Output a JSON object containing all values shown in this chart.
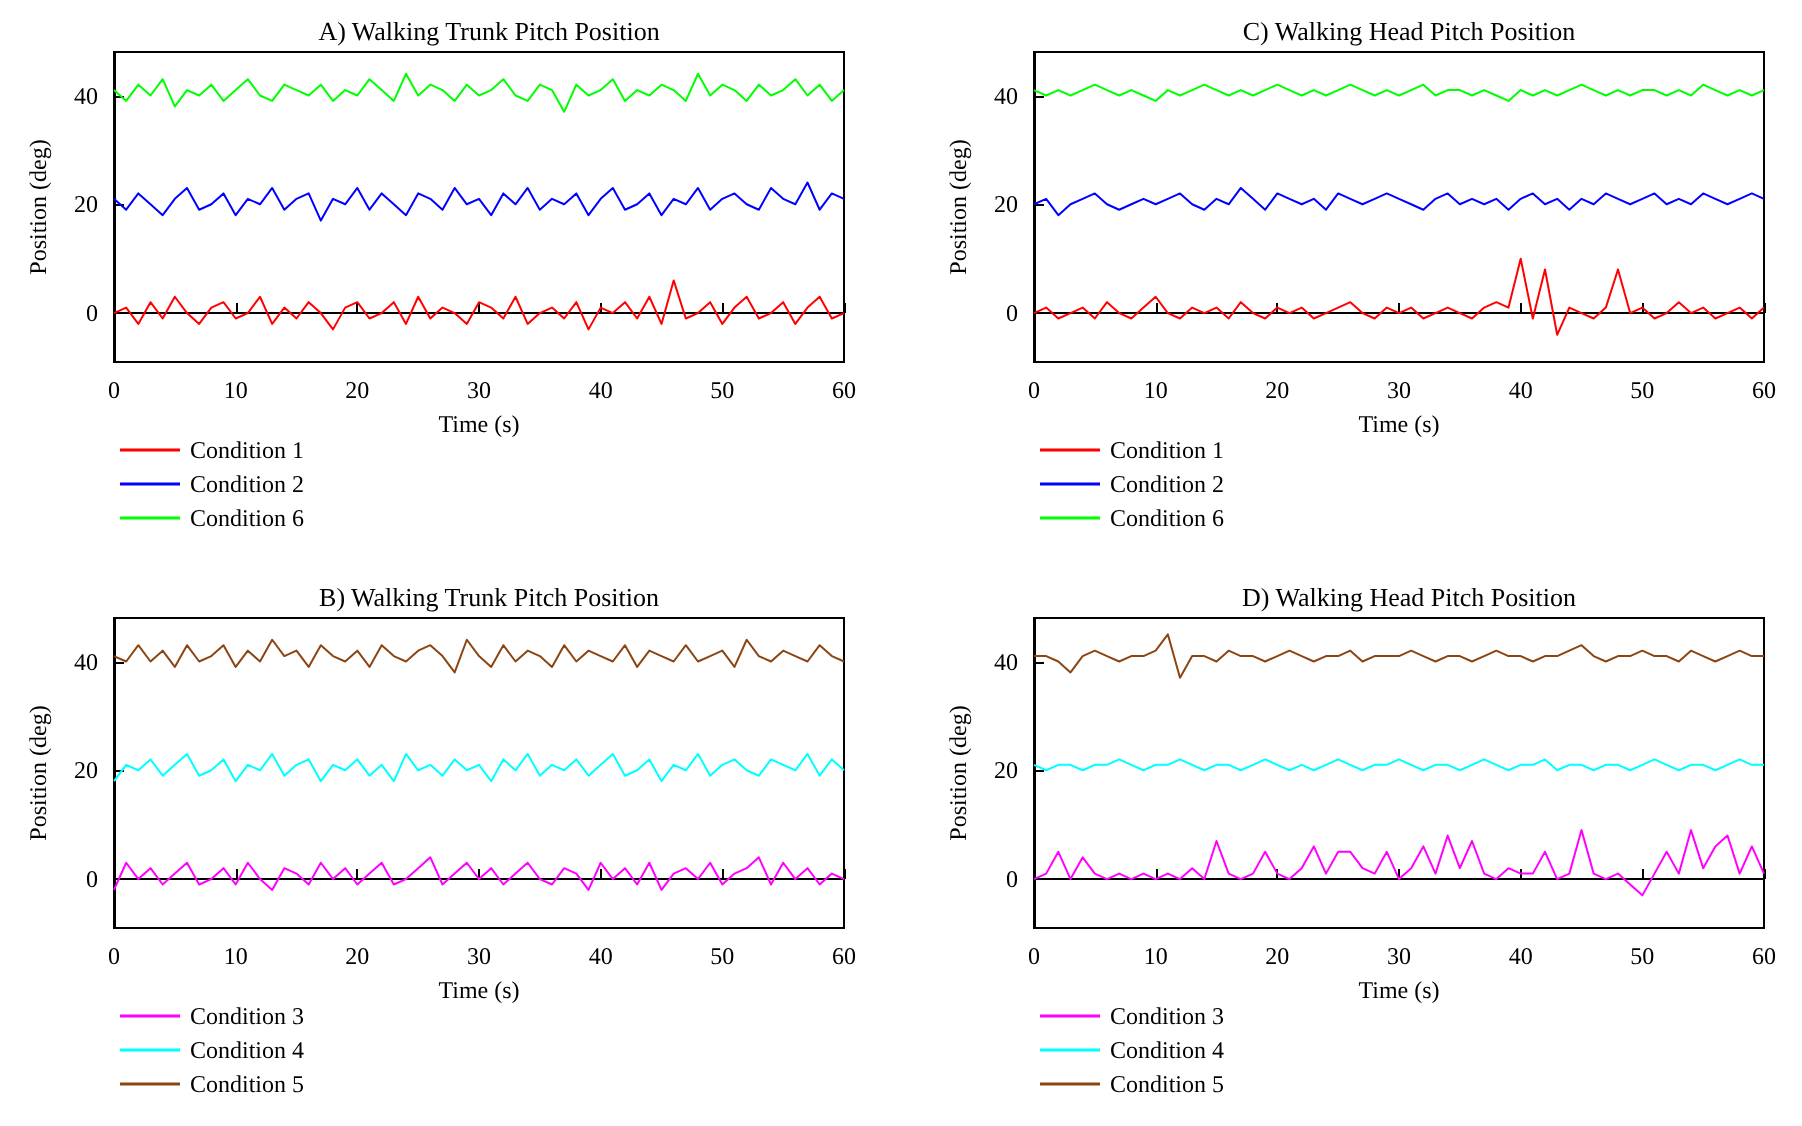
{
  "chart_data": [
    {
      "type": "line",
      "title": "A) Walking Trunk Pitch Position",
      "xlabel": "Time (s)",
      "ylabel": "Position (deg)",
      "legend": "bottom",
      "xlim": [
        0,
        60
      ],
      "ylim": [
        -9,
        48
      ],
      "xticks": [
        0,
        10,
        20,
        30,
        40,
        50,
        60
      ],
      "yticks": [
        0,
        20,
        40
      ],
      "x": [
        0,
        1,
        2,
        3,
        4,
        5,
        6,
        7,
        8,
        9,
        10,
        11,
        12,
        13,
        14,
        15,
        16,
        17,
        18,
        19,
        20,
        21,
        22,
        23,
        24,
        25,
        26,
        27,
        28,
        29,
        30,
        31,
        32,
        33,
        34,
        35,
        36,
        37,
        38,
        39,
        40,
        41,
        42,
        43,
        44,
        45,
        46,
        47,
        48,
        49,
        50,
        51,
        52,
        53,
        54,
        55,
        56,
        57,
        58,
        59,
        60
      ],
      "series": [
        {
          "name": "Condition 1",
          "color": "#ff0000",
          "values": [
            0,
            1,
            -2,
            2,
            -1,
            3,
            0,
            -2,
            1,
            2,
            -1,
            0,
            3,
            -2,
            1,
            -1,
            2,
            0,
            -3,
            1,
            2,
            -1,
            0,
            2,
            -2,
            3,
            -1,
            1,
            0,
            -2,
            2,
            1,
            -1,
            3,
            -2,
            0,
            1,
            -1,
            2,
            -3,
            1,
            0,
            2,
            -1,
            3,
            -2,
            6,
            -1,
            0,
            2,
            -2,
            1,
            3,
            -1,
            0,
            2,
            -2,
            1,
            3,
            -1,
            0
          ]
        },
        {
          "name": "Condition 2",
          "color": "#0000ff",
          "values": [
            21,
            19,
            22,
            20,
            18,
            21,
            23,
            19,
            20,
            22,
            18,
            21,
            20,
            23,
            19,
            21,
            22,
            17,
            21,
            20,
            23,
            19,
            22,
            20,
            18,
            22,
            21,
            19,
            23,
            20,
            21,
            18,
            22,
            20,
            23,
            19,
            21,
            20,
            22,
            18,
            21,
            23,
            19,
            20,
            22,
            18,
            21,
            20,
            23,
            19,
            21,
            22,
            20,
            19,
            23,
            21,
            20,
            24,
            19,
            22,
            21
          ]
        },
        {
          "name": "Condition 6",
          "color": "#00ff00",
          "values": [
            41,
            39,
            42,
            40,
            43,
            38,
            41,
            40,
            42,
            39,
            41,
            43,
            40,
            39,
            42,
            41,
            40,
            42,
            39,
            41,
            40,
            43,
            41,
            39,
            44,
            40,
            42,
            41,
            39,
            42,
            40,
            41,
            43,
            40,
            39,
            42,
            41,
            37,
            42,
            40,
            41,
            43,
            39,
            41,
            40,
            42,
            41,
            39,
            44,
            40,
            42,
            41,
            39,
            42,
            40,
            41,
            43,
            40,
            42,
            39,
            41
          ]
        }
      ]
    },
    {
      "type": "line",
      "title": "C) Walking Head Pitch Position",
      "xlabel": "Time (s)",
      "ylabel": "Position (deg)",
      "legend": "bottom",
      "xlim": [
        0,
        60
      ],
      "ylim": [
        -9,
        48
      ],
      "xticks": [
        0,
        10,
        20,
        30,
        40,
        50,
        60
      ],
      "yticks": [
        0,
        20,
        40
      ],
      "x": [
        0,
        1,
        2,
        3,
        4,
        5,
        6,
        7,
        8,
        9,
        10,
        11,
        12,
        13,
        14,
        15,
        16,
        17,
        18,
        19,
        20,
        21,
        22,
        23,
        24,
        25,
        26,
        27,
        28,
        29,
        30,
        31,
        32,
        33,
        34,
        35,
        36,
        37,
        38,
        39,
        40,
        41,
        42,
        43,
        44,
        45,
        46,
        47,
        48,
        49,
        50,
        51,
        52,
        53,
        54,
        55,
        56,
        57,
        58,
        59,
        60
      ],
      "series": [
        {
          "name": "Condition 1",
          "color": "#ff0000",
          "values": [
            0,
            1,
            -1,
            0,
            1,
            -1,
            2,
            0,
            -1,
            1,
            3,
            0,
            -1,
            1,
            0,
            1,
            -1,
            2,
            0,
            -1,
            1,
            0,
            1,
            -1,
            0,
            1,
            2,
            0,
            -1,
            1,
            0,
            1,
            -1,
            0,
            1,
            0,
            -1,
            1,
            2,
            1,
            10,
            -1,
            8,
            -4,
            1,
            0,
            -1,
            1,
            8,
            0,
            1,
            -1,
            0,
            2,
            0,
            1,
            -1,
            0,
            1,
            -1,
            1
          ]
        },
        {
          "name": "Condition 2",
          "color": "#0000ff",
          "values": [
            20,
            21,
            18,
            20,
            21,
            22,
            20,
            19,
            20,
            21,
            20,
            21,
            22,
            20,
            19,
            21,
            20,
            23,
            21,
            19,
            22,
            21,
            20,
            21,
            19,
            22,
            21,
            20,
            21,
            22,
            21,
            20,
            19,
            21,
            22,
            20,
            21,
            20,
            21,
            19,
            21,
            22,
            20,
            21,
            19,
            21,
            20,
            22,
            21,
            20,
            21,
            22,
            20,
            21,
            20,
            22,
            21,
            20,
            21,
            22,
            21
          ]
        },
        {
          "name": "Condition 6",
          "color": "#00ff00",
          "values": [
            41,
            40,
            41,
            40,
            41,
            42,
            41,
            40,
            41,
            40,
            39,
            41,
            40,
            41,
            42,
            41,
            40,
            41,
            40,
            41,
            42,
            41,
            40,
            41,
            40,
            41,
            42,
            41,
            40,
            41,
            40,
            41,
            42,
            40,
            41,
            41,
            40,
            41,
            40,
            39,
            41,
            40,
            41,
            40,
            41,
            42,
            41,
            40,
            41,
            40,
            41,
            41,
            40,
            41,
            40,
            42,
            41,
            40,
            41,
            40,
            41
          ]
        }
      ]
    },
    {
      "type": "line",
      "title": "B) Walking Trunk Pitch Position",
      "xlabel": "Time (s)",
      "ylabel": "Position (deg)",
      "legend": "bottom",
      "xlim": [
        0,
        60
      ],
      "ylim": [
        -9,
        48
      ],
      "xticks": [
        0,
        10,
        20,
        30,
        40,
        50,
        60
      ],
      "yticks": [
        0,
        20,
        40
      ],
      "x": [
        0,
        1,
        2,
        3,
        4,
        5,
        6,
        7,
        8,
        9,
        10,
        11,
        12,
        13,
        14,
        15,
        16,
        17,
        18,
        19,
        20,
        21,
        22,
        23,
        24,
        25,
        26,
        27,
        28,
        29,
        30,
        31,
        32,
        33,
        34,
        35,
        36,
        37,
        38,
        39,
        40,
        41,
        42,
        43,
        44,
        45,
        46,
        47,
        48,
        49,
        50,
        51,
        52,
        53,
        54,
        55,
        56,
        57,
        58,
        59,
        60
      ],
      "series": [
        {
          "name": "Condition 3",
          "color": "#ff00ff",
          "values": [
            -2,
            3,
            0,
            2,
            -1,
            1,
            3,
            -1,
            0,
            2,
            -1,
            3,
            0,
            -2,
            2,
            1,
            -1,
            3,
            0,
            2,
            -1,
            1,
            3,
            -1,
            0,
            2,
            4,
            -1,
            1,
            3,
            0,
            2,
            -1,
            1,
            3,
            0,
            -1,
            2,
            1,
            -2,
            3,
            0,
            2,
            -1,
            3,
            -2,
            1,
            2,
            0,
            3,
            -1,
            1,
            2,
            4,
            -1,
            3,
            0,
            2,
            -1,
            1,
            0
          ]
        },
        {
          "name": "Condition 4",
          "color": "#00ffff",
          "values": [
            18,
            21,
            20,
            22,
            19,
            21,
            23,
            19,
            20,
            22,
            18,
            21,
            20,
            23,
            19,
            21,
            22,
            18,
            21,
            20,
            22,
            19,
            21,
            18,
            23,
            20,
            21,
            19,
            22,
            20,
            21,
            18,
            22,
            20,
            23,
            19,
            21,
            20,
            22,
            19,
            21,
            23,
            19,
            20,
            22,
            18,
            21,
            20,
            23,
            19,
            21,
            22,
            20,
            19,
            22,
            21,
            20,
            23,
            19,
            22,
            20
          ]
        },
        {
          "name": "Condition 5",
          "color": "#8b4513",
          "values": [
            41,
            40,
            43,
            40,
            42,
            39,
            43,
            40,
            41,
            43,
            39,
            42,
            40,
            44,
            41,
            42,
            39,
            43,
            41,
            40,
            42,
            39,
            43,
            41,
            40,
            42,
            43,
            41,
            38,
            44,
            41,
            39,
            43,
            40,
            42,
            41,
            39,
            43,
            40,
            42,
            41,
            40,
            43,
            39,
            42,
            41,
            40,
            43,
            40,
            41,
            42,
            39,
            44,
            41,
            40,
            42,
            41,
            40,
            43,
            41,
            40
          ]
        }
      ]
    },
    {
      "type": "line",
      "title": "D) Walking Head Pitch Position",
      "xlabel": "Time (s)",
      "ylabel": "Position (deg)",
      "legend": "bottom",
      "xlim": [
        0,
        60
      ],
      "ylim": [
        -9,
        48
      ],
      "xticks": [
        0,
        10,
        20,
        30,
        40,
        50,
        60
      ],
      "yticks": [
        0,
        20,
        40
      ],
      "x": [
        0,
        1,
        2,
        3,
        4,
        5,
        6,
        7,
        8,
        9,
        10,
        11,
        12,
        13,
        14,
        15,
        16,
        17,
        18,
        19,
        20,
        21,
        22,
        23,
        24,
        25,
        26,
        27,
        28,
        29,
        30,
        31,
        32,
        33,
        34,
        35,
        36,
        37,
        38,
        39,
        40,
        41,
        42,
        43,
        44,
        45,
        46,
        47,
        48,
        49,
        50,
        51,
        52,
        53,
        54,
        55,
        56,
        57,
        58,
        59,
        60
      ],
      "series": [
        {
          "name": "Condition 3",
          "color": "#ff00ff",
          "values": [
            0,
            1,
            5,
            0,
            4,
            1,
            0,
            1,
            0,
            1,
            0,
            1,
            0,
            2,
            0,
            7,
            1,
            0,
            1,
            5,
            1,
            0,
            2,
            6,
            1,
            5,
            5,
            2,
            1,
            5,
            0,
            2,
            6,
            1,
            8,
            2,
            7,
            1,
            0,
            2,
            1,
            1,
            5,
            0,
            1,
            9,
            1,
            0,
            1,
            -1,
            -3,
            1,
            5,
            1,
            9,
            2,
            6,
            8,
            1,
            6,
            1
          ]
        },
        {
          "name": "Condition 4",
          "color": "#00ffff",
          "values": [
            21,
            20,
            21,
            21,
            20,
            21,
            21,
            22,
            21,
            20,
            21,
            21,
            22,
            21,
            20,
            21,
            21,
            20,
            21,
            22,
            21,
            20,
            21,
            20,
            21,
            22,
            21,
            20,
            21,
            21,
            22,
            21,
            20,
            21,
            21,
            20,
            21,
            22,
            21,
            20,
            21,
            21,
            22,
            20,
            21,
            21,
            20,
            21,
            21,
            20,
            21,
            22,
            21,
            20,
            21,
            21,
            20,
            21,
            22,
            21,
            21
          ]
        },
        {
          "name": "Condition 5",
          "color": "#8b4513",
          "values": [
            41,
            41,
            40,
            38,
            41,
            42,
            41,
            40,
            41,
            41,
            42,
            45,
            37,
            41,
            41,
            40,
            42,
            41,
            41,
            40,
            41,
            42,
            41,
            40,
            41,
            41,
            42,
            40,
            41,
            41,
            41,
            42,
            41,
            40,
            41,
            41,
            40,
            41,
            42,
            41,
            41,
            40,
            41,
            41,
            42,
            43,
            41,
            40,
            41,
            41,
            42,
            41,
            41,
            40,
            42,
            41,
            40,
            41,
            42,
            41,
            41
          ]
        }
      ]
    }
  ]
}
